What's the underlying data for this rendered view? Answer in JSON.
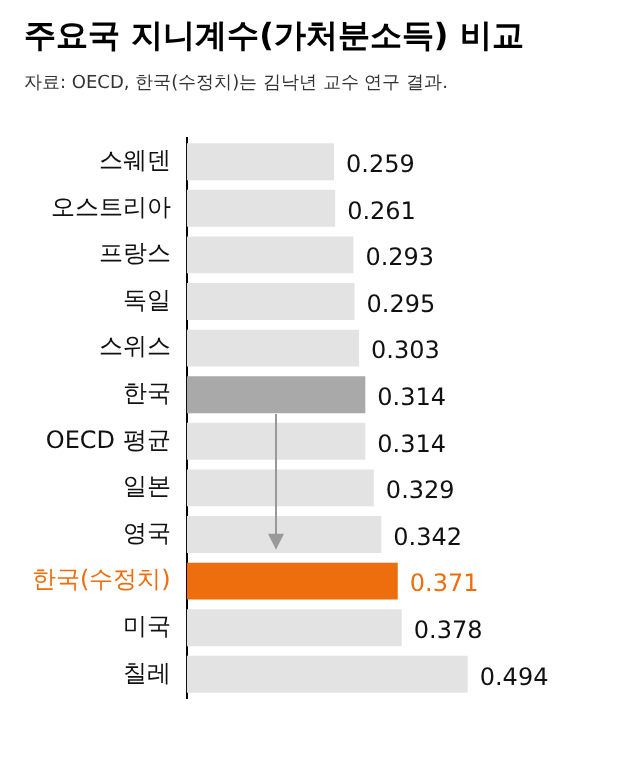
{
  "chart_data": {
    "type": "bar",
    "orientation": "horizontal",
    "title": "주요국 지니계수(가처분소득) 비교",
    "subtitle": "자료: OECD, 한국(수정치)는 김낙년 교수 연구 결과.",
    "categories": [
      "스웨덴",
      "오스트리아",
      "프랑스",
      "독일",
      "스위스",
      "한국",
      "OECD 평균",
      "일본",
      "영국",
      "한국(수정치)",
      "미국",
      "칠레"
    ],
    "values": [
      0.259,
      0.261,
      0.293,
      0.295,
      0.303,
      0.314,
      0.314,
      0.329,
      0.342,
      0.371,
      0.378,
      0.494
    ],
    "colors": [
      "#e3e3e3",
      "#e3e3e3",
      "#e3e3e3",
      "#e3e3e3",
      "#e3e3e3",
      "#a9a9a9",
      "#e3e3e3",
      "#e3e3e3",
      "#e3e3e3",
      "#ee6d0c",
      "#e3e3e3",
      "#e3e3e3"
    ],
    "value_labels": [
      "0.259",
      "0.261",
      "0.293",
      "0.295",
      "0.303",
      "0.314",
      "0.314",
      "0.329",
      "0.342",
      "0.371",
      "0.378",
      "0.494"
    ],
    "legend": false
  }
}
